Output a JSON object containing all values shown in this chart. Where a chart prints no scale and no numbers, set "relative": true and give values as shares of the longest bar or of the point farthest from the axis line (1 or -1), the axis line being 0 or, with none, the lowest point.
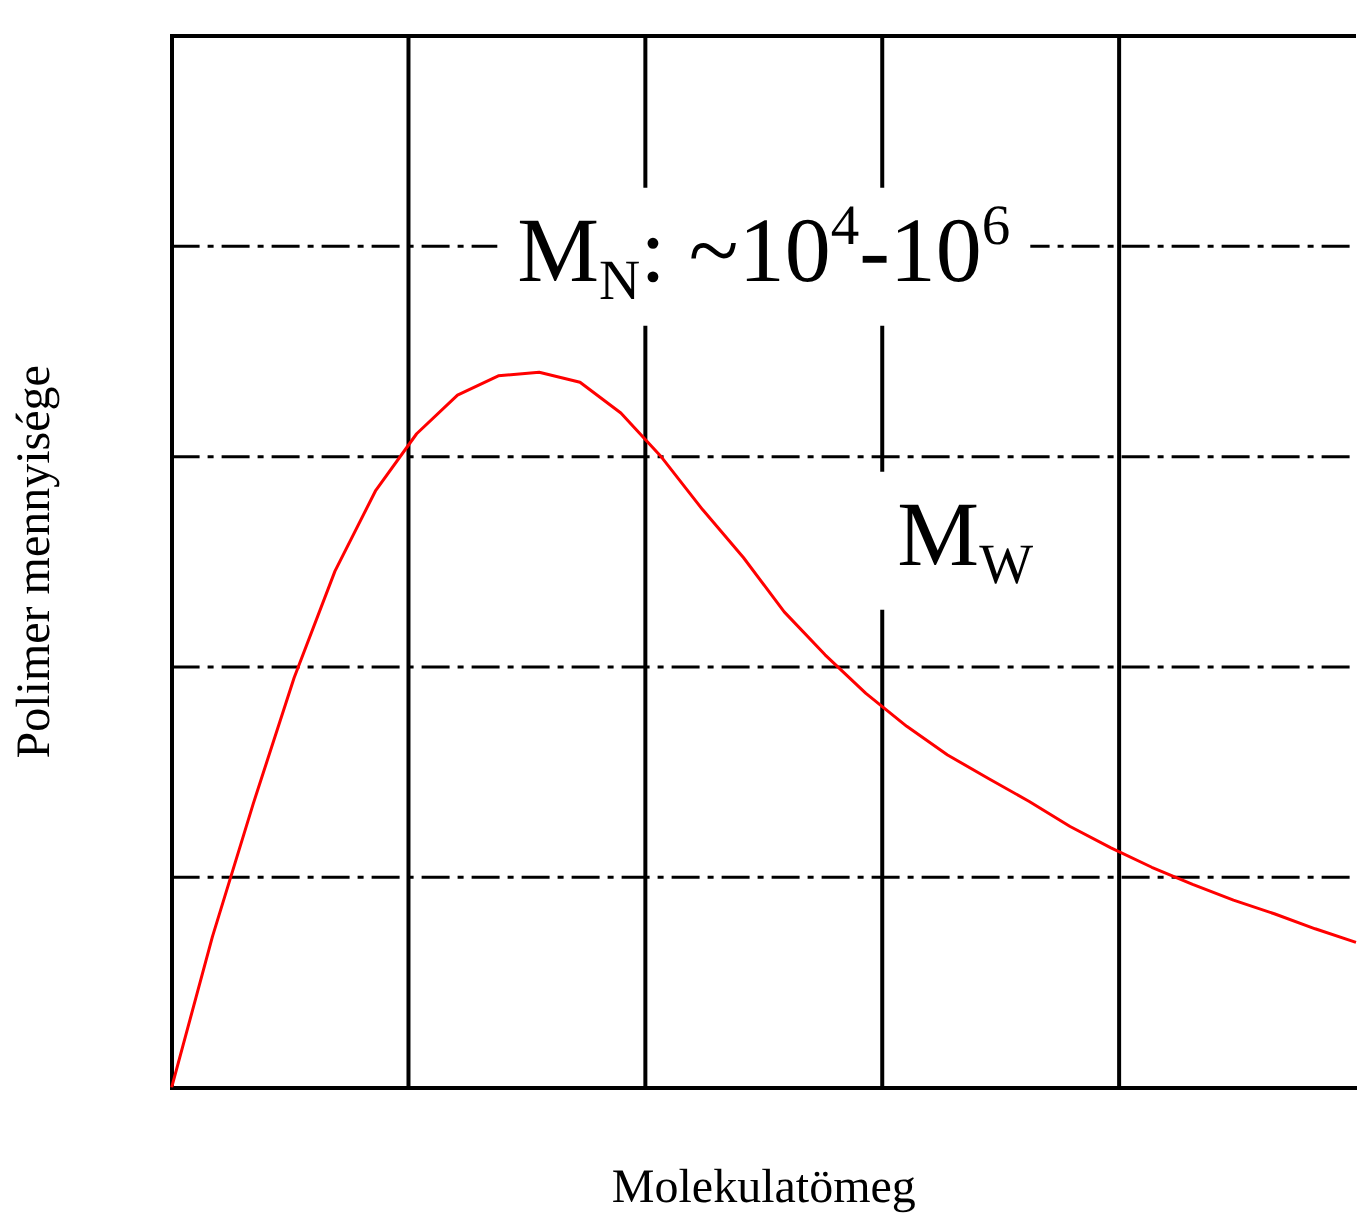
{
  "chart_data": {
    "type": "line",
    "relative": true,
    "xlabel": "Molekulatömeg",
    "ylabel": "Polimer mennyisége",
    "categories": [
      null,
      null,
      null,
      null,
      null,
      null,
      null,
      null,
      null,
      null,
      null,
      null,
      null,
      null,
      null,
      null,
      null,
      null,
      null,
      null,
      null,
      null,
      null,
      null,
      null,
      null,
      null,
      null,
      null,
      null
    ],
    "series": [
      {
        "color": "#ff0000",
        "values": [
          0,
          0.211,
          0.397,
          0.573,
          0.722,
          0.835,
          0.914,
          0.968,
          0.995,
          1,
          0.986,
          0.943,
          0.881,
          0.808,
          0.741,
          0.665,
          0.605,
          0.551,
          0.505,
          0.465,
          0.432,
          0.4,
          0.365,
          0.335,
          0.308,
          0.284,
          0.262,
          0.243,
          0.222,
          0.203
        ]
      }
    ],
    "annotations": [
      "M$_{N}$: ~10$^{4}$-10$^{6}$",
      "M$_{W}$"
    ],
    "grid": true,
    "marker": "none",
    "line_style": "solid",
    "legend": false
  }
}
